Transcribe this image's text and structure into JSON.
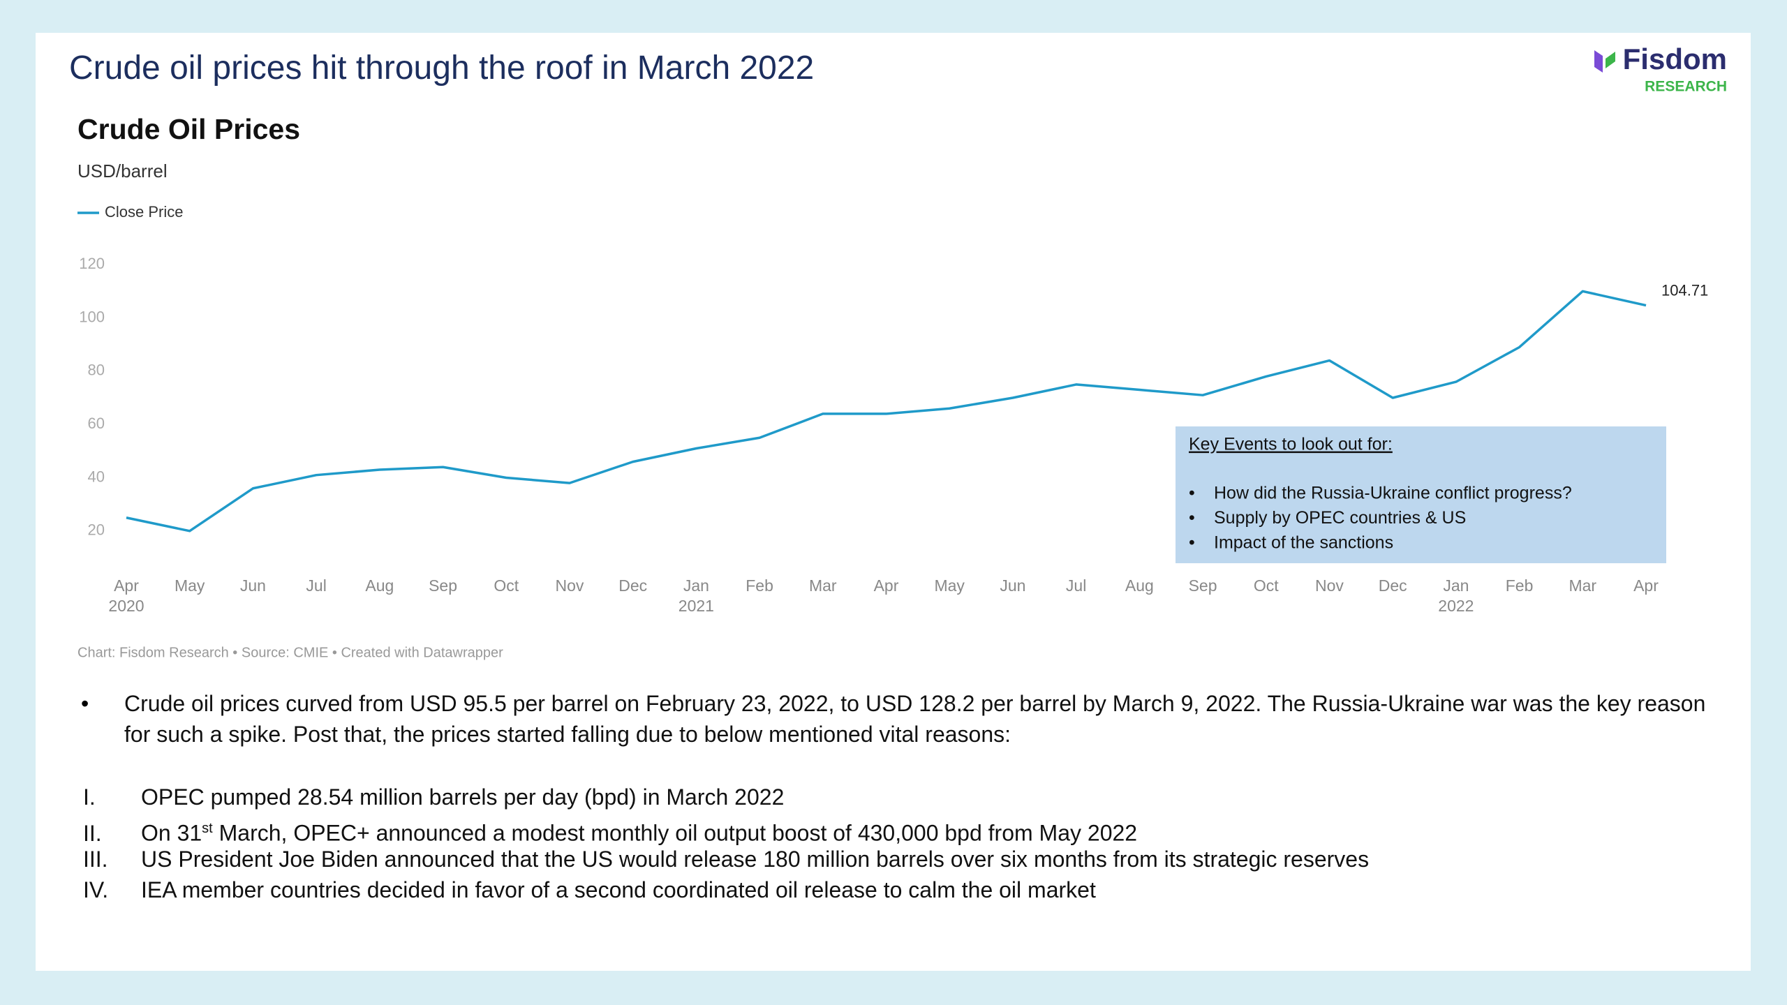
{
  "header": {
    "title": "Crude oil prices hit through the roof in March 2022",
    "logo": {
      "brand": "Fisdom",
      "tag": "RESEARCH"
    }
  },
  "chart_data": {
    "type": "line",
    "title": "Crude Oil Prices",
    "subtitle": "USD/barrel",
    "x": [
      "2020-04",
      "2020-05",
      "2020-06",
      "2020-07",
      "2020-08",
      "2020-09",
      "2020-10",
      "2020-11",
      "2020-12",
      "2021-01",
      "2021-02",
      "2021-03",
      "2021-04",
      "2021-05",
      "2021-06",
      "2021-07",
      "2021-08",
      "2021-09",
      "2021-10",
      "2021-11",
      "2021-12",
      "2022-01",
      "2022-02",
      "2022-03",
      "2022-04"
    ],
    "series": [
      {
        "name": "Close Price",
        "color": "#1f9ac9",
        "values": [
          25,
          20,
          36,
          41,
          43,
          44,
          40,
          38,
          46,
          51,
          55,
          64,
          64,
          66,
          70,
          75,
          73,
          71,
          78,
          84,
          70,
          76,
          89,
          110,
          104.71
        ]
      }
    ],
    "xlim": [
      "2020-04",
      "2022-04"
    ],
    "xticks": [
      {
        "value": "2020-04",
        "label": "Apr",
        "year": "2020"
      },
      {
        "value": "2020-05",
        "label": "May"
      },
      {
        "value": "2020-06",
        "label": "Jun"
      },
      {
        "value": "2020-07",
        "label": "Jul"
      },
      {
        "value": "2020-08",
        "label": "Aug"
      },
      {
        "value": "2020-09",
        "label": "Sep"
      },
      {
        "value": "2020-10",
        "label": "Oct"
      },
      {
        "value": "2020-11",
        "label": "Nov"
      },
      {
        "value": "2020-12",
        "label": "Dec"
      },
      {
        "value": "2021-01",
        "label": "Jan",
        "year": "2021"
      },
      {
        "value": "2021-02",
        "label": "Feb"
      },
      {
        "value": "2021-03",
        "label": "Mar"
      },
      {
        "value": "2021-04",
        "label": "Apr"
      },
      {
        "value": "2021-05",
        "label": "May"
      },
      {
        "value": "2021-06",
        "label": "Jun"
      },
      {
        "value": "2021-07",
        "label": "Jul"
      },
      {
        "value": "2021-08",
        "label": "Aug"
      },
      {
        "value": "2021-09",
        "label": "Sep"
      },
      {
        "value": "2021-10",
        "label": "Oct"
      },
      {
        "value": "2021-11",
        "label": "Nov"
      },
      {
        "value": "2021-12",
        "label": "Dec"
      },
      {
        "value": "2022-01",
        "label": "Jan",
        "year": "2022"
      },
      {
        "value": "2022-02",
        "label": "Feb"
      },
      {
        "value": "2022-03",
        "label": "Mar"
      },
      {
        "value": "2022-04",
        "label": "Apr"
      }
    ],
    "ylim": [
      10,
      130
    ],
    "yticks": [
      20,
      40,
      60,
      80,
      100,
      120
    ],
    "annotation": {
      "title": "Key Events to look out for:",
      "items": [
        "How did the Russia-Ukraine conflict progress?",
        "Supply by OPEC countries & US",
        "Impact of the sanctions"
      ]
    },
    "footer": "Chart: Fisdom Research • Source: CMIE • Created with Datawrapper"
  },
  "body": {
    "bullet": "Crude oil prices curved from USD 95.5 per barrel on February 23, 2022, to USD 128.2 per barrel by March 9, 2022. The Russia-Ukraine war was the key reason for such a spike. Post that, the prices started falling due to below mentioned vital reasons:",
    "points": [
      {
        "numeral": "I.",
        "parts": [
          "OPEC pumped 28.54 million barrels per day (bpd) in March 2022"
        ]
      },
      {
        "numeral": "II.",
        "parts": [
          "On 31",
          "st",
          " March, OPEC+ announced a modest monthly oil output boost of 430,000 bpd from May 2022"
        ]
      },
      {
        "numeral": "III.",
        "parts": [
          "US President Joe Biden announced that the US would release 180 million barrels over six months from its strategic reserves"
        ]
      },
      {
        "numeral": "IV.",
        "parts": [
          "IEA member countries decided in favor of a second coordinated oil release to calm the oil market"
        ]
      }
    ]
  }
}
